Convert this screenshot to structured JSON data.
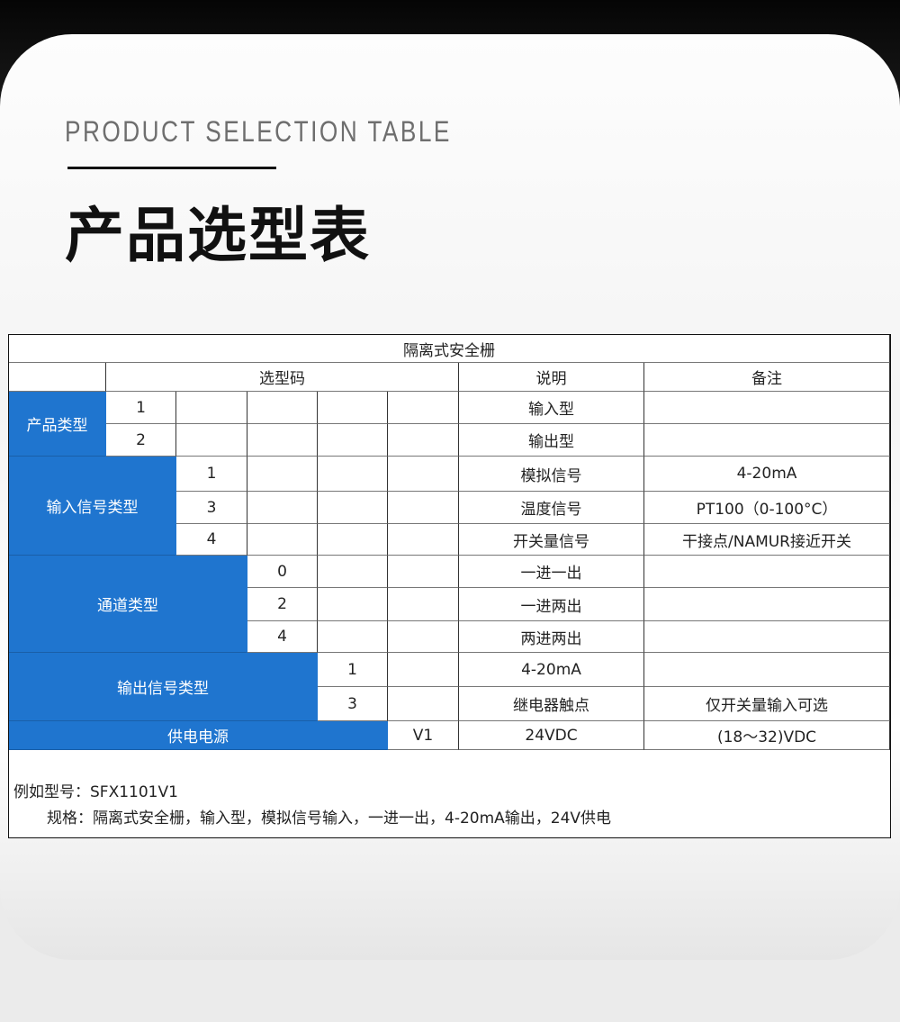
{
  "heading": {
    "english": "PRODUCT SELECTION TABLE",
    "chinese": "产品选型表"
  },
  "table": {
    "title": "隔离式安全栅",
    "headers": {
      "code": "选型码",
      "desc": "说明",
      "remark": "备注"
    },
    "groups": {
      "product_type": {
        "label": "产品类型",
        "rows": [
          {
            "code": "1",
            "desc": "输入型",
            "remark": ""
          },
          {
            "code": "2",
            "desc": "输出型",
            "remark": ""
          }
        ]
      },
      "input_signal": {
        "label": "输入信号类型",
        "rows": [
          {
            "code": "1",
            "desc": "模拟信号",
            "remark": "4-20mA"
          },
          {
            "code": "3",
            "desc": "温度信号",
            "remark": "PT100（0-100°C）"
          },
          {
            "code": "4",
            "desc": "开关量信号",
            "remark": "干接点/NAMUR接近开关"
          }
        ]
      },
      "channel": {
        "label": "通道类型",
        "rows": [
          {
            "code": "0",
            "desc": "一进一出",
            "remark": ""
          },
          {
            "code": "2",
            "desc": "一进两出",
            "remark": ""
          },
          {
            "code": "4",
            "desc": "两进两出",
            "remark": ""
          }
        ]
      },
      "output_signal": {
        "label": "输出信号类型",
        "rows": [
          {
            "code": "1",
            "desc": "4-20mA",
            "remark": ""
          },
          {
            "code": "3",
            "desc": "继电器触点",
            "remark": "仅开关量输入可选"
          }
        ]
      },
      "power": {
        "label": "供电电源",
        "rows": [
          {
            "code": "V1",
            "desc": "24VDC",
            "remark": "(18～32)VDC"
          }
        ]
      }
    },
    "example": {
      "model": "例如型号：SFX1101V1",
      "spec": "规格：隔离式安全栅，输入型，模拟信号输入，一进一出，4-20mA输出，24V供电"
    },
    "accent_color": "#1f75cf"
  }
}
